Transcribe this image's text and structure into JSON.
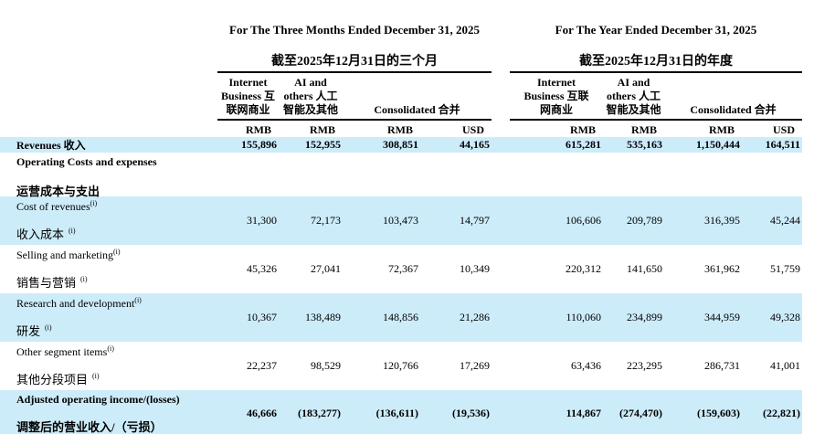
{
  "table": {
    "colors": {
      "band": "#cdecfa",
      "text": "#000000",
      "rule": "#000000"
    },
    "groups": [
      {
        "title_en": "For The Three Months Ended December 31, 2025",
        "title_cn": "截至2025年12月31日的三个月",
        "col1_lines": [
          "Internet",
          "Business 互",
          "联网商业"
        ],
        "col2_lines": [
          "AI and",
          "others 人工",
          "智能及其他"
        ],
        "col34_label": "Consolidated 合并",
        "currencies": [
          "RMB",
          "RMB",
          "RMB",
          "USD"
        ]
      },
      {
        "title_en": "For The Year Ended December 31, 2025",
        "title_cn": "截至2025年12月31日的年度",
        "col1_lines": [
          "Internet",
          "Business 互联",
          "网商业"
        ],
        "col2_lines": [
          "AI and",
          "others 人工",
          "智能及其他"
        ],
        "col34_label": "Consolidated 合并",
        "currencies": [
          "RMB",
          "RMB",
          "RMB",
          "USD"
        ]
      }
    ],
    "revenues_row": {
      "label": "Revenues  收入",
      "values": [
        "155,896",
        "152,955",
        "308,851",
        "44,165",
        "615,281",
        "535,163",
        "1,150,444",
        "164,511"
      ]
    },
    "section_row": {
      "en": "Operating Costs and expenses",
      "cn": "运营成本与支出"
    },
    "rows": [
      {
        "en": "Cost of revenues",
        "en_sup": "(i)",
        "cn": "收入成本",
        "cn_sup": "(i)",
        "values": [
          "31,300",
          "72,173",
          "103,473",
          "14,797",
          "106,606",
          "209,789",
          "316,395",
          "45,244"
        ],
        "shaded": true,
        "bold": false
      },
      {
        "en": "Selling and marketing",
        "en_sup": "(i)",
        "cn": "销售与营销",
        "cn_sup": "(i)",
        "values": [
          "45,326",
          "27,041",
          "72,367",
          "10,349",
          "220,312",
          "141,650",
          "361,962",
          "51,759"
        ],
        "shaded": false,
        "bold": false
      },
      {
        "en": "Research and development",
        "en_sup": "(i)",
        "cn": "研发",
        "cn_sup": "(i)",
        "values": [
          "10,367",
          "138,489",
          "148,856",
          "21,286",
          "110,060",
          "234,899",
          "344,959",
          "49,328"
        ],
        "shaded": true,
        "bold": false
      },
      {
        "en": "Other segment items",
        "en_sup": "(i)",
        "cn": "其他分段项目",
        "cn_sup": "(i)",
        "values": [
          "22,237",
          "98,529",
          "120,766",
          "17,269",
          "63,436",
          "223,295",
          "286,731",
          "41,001"
        ],
        "shaded": false,
        "bold": false
      },
      {
        "en": "Adjusted operating income/(losses)",
        "en_sup": "",
        "cn": "调整后的营业收入/（亏损）",
        "cn_sup": "",
        "values": [
          "46,666",
          "(183,277)",
          "(136,611)",
          "(19,536)",
          "114,867",
          "(274,470)",
          "(159,603)",
          "(22,821)"
        ],
        "shaded": true,
        "bold": true
      }
    ]
  }
}
